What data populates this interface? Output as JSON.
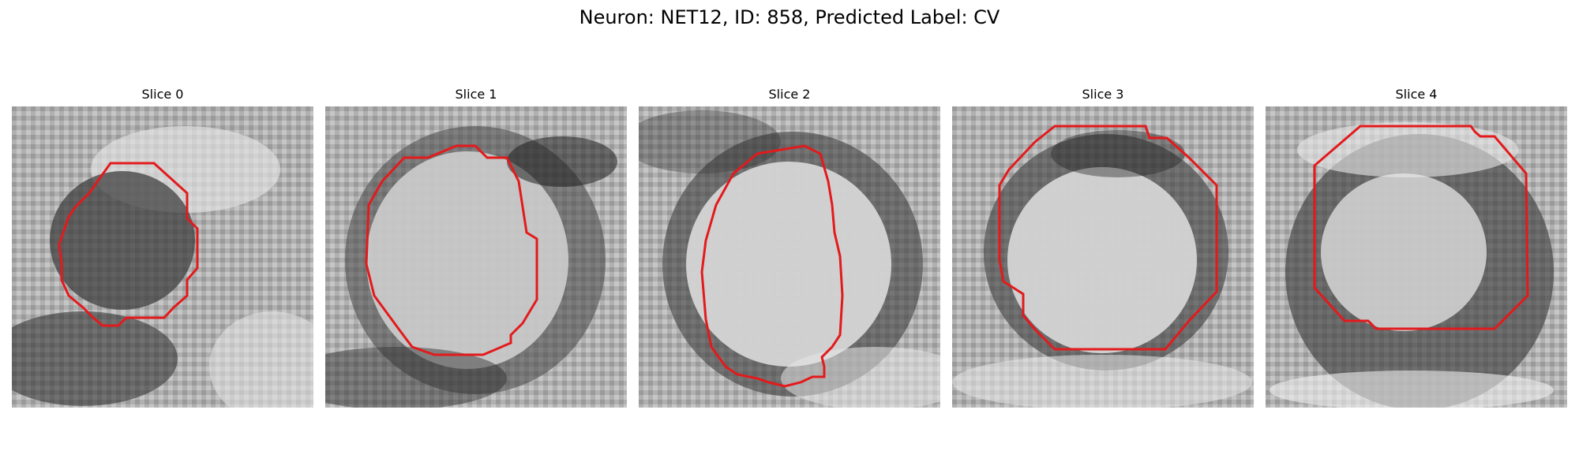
{
  "figure": {
    "title": "Neuron: NET12, ID: 858, Predicted Label: CV"
  },
  "slices": [
    {
      "label": "Slice 0"
    },
    {
      "label": "Slice 1"
    },
    {
      "label": "Slice 2"
    },
    {
      "label": "Slice 3"
    },
    {
      "label": "Slice 4"
    }
  ],
  "contour_color": "#e31a1c"
}
